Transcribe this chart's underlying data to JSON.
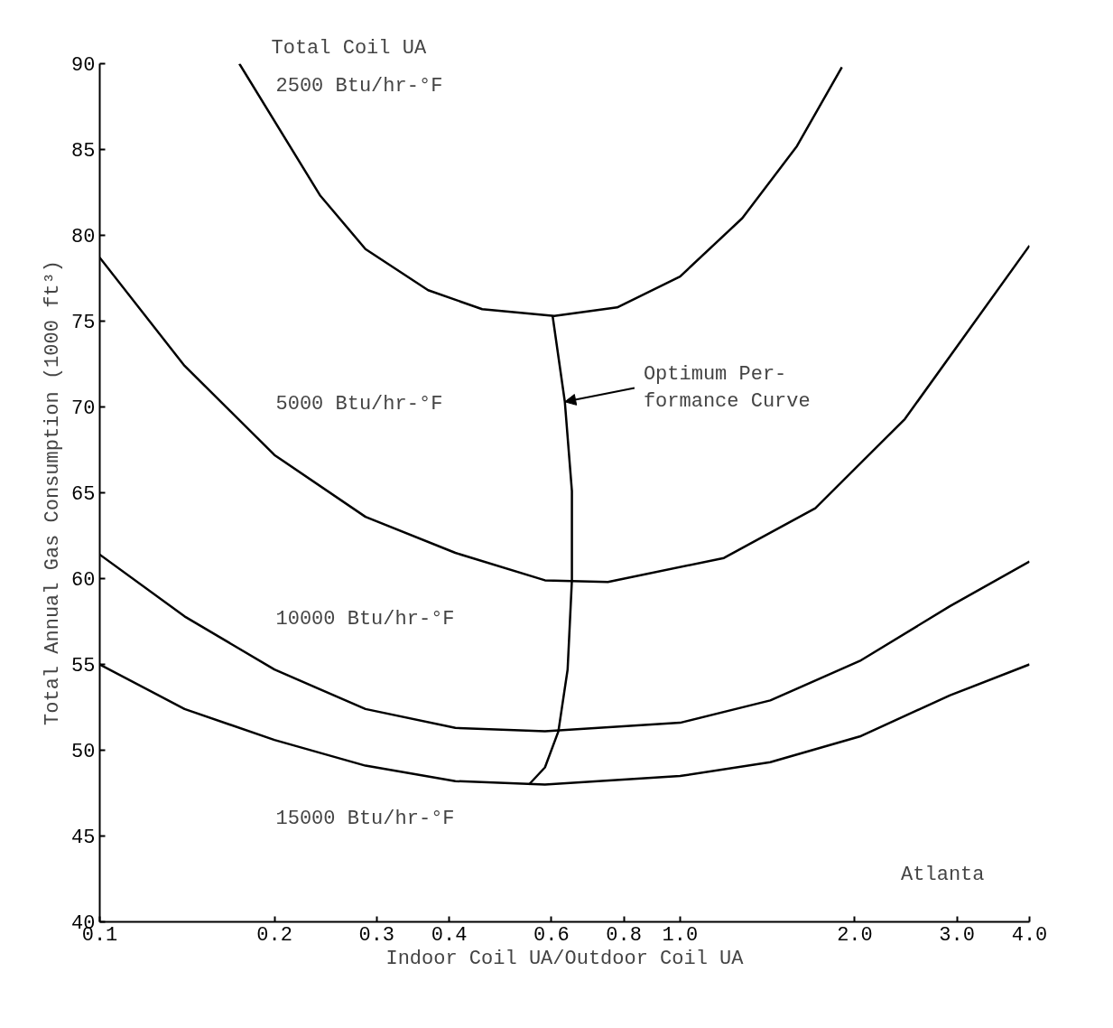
{
  "chart_data": {
    "type": "line",
    "title": "Total Coil UA",
    "xlabel": "Indoor Coil UA/Outdoor Coil UA",
    "ylabel": "Total Annual Gas Consumption (1000 ft³)",
    "log": "x",
    "grid": false,
    "marker": "none",
    "line_style": "solid",
    "xlim": [
      0.1,
      4.0
    ],
    "ylim": [
      40,
      90
    ],
    "xticks": [
      0.1,
      0.2,
      0.3,
      0.4,
      0.6,
      0.8,
      {
        "value": 1,
        "label": "1.0"
      },
      {
        "value": 2,
        "label": "2.0"
      },
      {
        "value": 3,
        "label": "3.0"
      },
      {
        "value": 4,
        "label": "4.0"
      }
    ],
    "yticks": [
      40,
      45,
      50,
      55,
      60,
      65,
      70,
      75,
      80,
      85,
      90
    ],
    "series": [
      {
        "color": "#000000",
        "x": [
          0.174,
          0.24,
          0.287,
          0.368,
          0.456,
          0.607,
          0.779,
          1.0,
          1.28,
          1.59,
          1.9
        ],
        "values": [
          90,
          82.3,
          79.2,
          76.8,
          75.7,
          75.3,
          75.8,
          77.6,
          81.0,
          85.2,
          89.8
        ]
      },
      {
        "color": "#000000",
        "x": [
          0.1,
          0.14,
          0.2,
          0.287,
          0.41,
          0.585,
          0.751,
          1.19,
          1.71,
          2.44,
          4.0
        ],
        "values": [
          78.7,
          72.4,
          67.2,
          63.6,
          61.5,
          59.9,
          59.8,
          61.2,
          64.1,
          69.3,
          79.4
        ]
      },
      {
        "color": "#000000",
        "x": [
          0.1,
          0.14,
          0.2,
          0.287,
          0.41,
          0.585,
          1.0,
          1.43,
          2.04,
          2.92,
          4.0
        ],
        "values": [
          61.4,
          57.8,
          54.7,
          52.4,
          51.3,
          51.1,
          51.6,
          52.9,
          55.2,
          58.4,
          61.0
        ]
      },
      {
        "color": "#000000",
        "x": [
          0.1,
          0.14,
          0.2,
          0.287,
          0.41,
          0.585,
          1.0,
          1.43,
          2.04,
          2.92,
          4.0
        ],
        "values": [
          55.0,
          52.4,
          50.6,
          49.1,
          48.2,
          48.0,
          48.5,
          49.3,
          50.8,
          53.2,
          55.0
        ]
      },
      {
        "color": "#000000",
        "x": [
          0.603,
          0.633,
          0.651,
          0.651,
          0.64,
          0.617,
          0.585,
          0.549
        ],
        "values": [
          75.3,
          70.3,
          65.1,
          59.9,
          54.7,
          51.1,
          49.0,
          48.0
        ]
      }
    ],
    "annotations": [
      "2500 Btu/hr-°F",
      "5000 Btu/hr-°F",
      "10000 Btu/hr-°F",
      "15000 Btu/hr-°F",
      {
        "text": "Optimum Per-\nformance Curve",
        "x": 0.633,
        "y": 70.3
      },
      "Atlanta"
    ]
  }
}
